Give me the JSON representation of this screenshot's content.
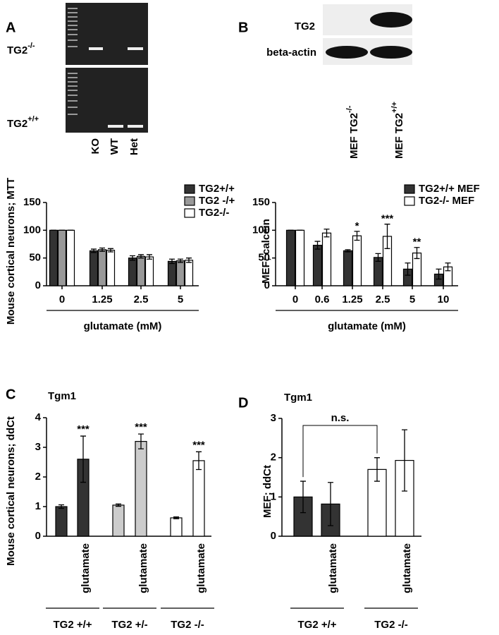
{
  "panel_labels": [
    "A",
    "B",
    "C",
    "D"
  ],
  "gel_a": {
    "rows": [
      {
        "name": "TG2",
        "sup": "-/-"
      },
      {
        "name": "TG2",
        "sup": "+/+"
      }
    ],
    "lanes": [
      "KO",
      "WT",
      "Het"
    ]
  },
  "blot_b": {
    "rows": [
      "TG2",
      "beta-actin"
    ],
    "lanes": [
      {
        "name": "MEF TG2",
        "sup": "-/-"
      },
      {
        "name": "MEF TG2",
        "sup": "+/+"
      }
    ]
  },
  "chart_data": [
    {
      "type": "bar",
      "y_label": "Mouse cortical neurons; MTT",
      "x_label": "glutamate (mM)",
      "categories": [
        "0",
        "1.25",
        "2.5",
        "5"
      ],
      "ylim": [
        0,
        150
      ],
      "yticks": [
        0,
        50,
        100,
        150
      ],
      "legend": "top-right",
      "series": [
        {
          "name": "TG2+/+",
          "color": "#333333",
          "values": [
            100,
            63,
            50,
            44
          ],
          "errors": [
            0,
            3,
            4,
            4
          ]
        },
        {
          "name": "TG2 -/+",
          "color": "#999999",
          "values": [
            100,
            65,
            53,
            45
          ],
          "errors": [
            0,
            3,
            3,
            3
          ]
        },
        {
          "name": "TG2-/-",
          "color": "#ffffff",
          "values": [
            100,
            64,
            52,
            46
          ],
          "errors": [
            0,
            3,
            4,
            4
          ]
        }
      ]
    },
    {
      "type": "bar",
      "y_label": "MEF; calcein",
      "x_label": "glutamate (mM)",
      "categories": [
        "0",
        "0.6",
        "1.25",
        "2.5",
        "5",
        "10"
      ],
      "ylim": [
        0,
        150
      ],
      "yticks": [
        0,
        50,
        100,
        150
      ],
      "legend": "top-right",
      "series": [
        {
          "name": "TG2+/+ MEF",
          "color": "#333333",
          "values": [
            100,
            73,
            63,
            51,
            30,
            21
          ],
          "errors": [
            0,
            7,
            2,
            7,
            11,
            9
          ]
        },
        {
          "name": "TG2-/- MEF",
          "color": "#ffffff",
          "values": [
            100,
            95,
            90,
            89,
            59,
            34
          ],
          "errors": [
            0,
            7,
            8,
            22,
            10,
            7
          ]
        }
      ],
      "annotations": [
        null,
        null,
        "*",
        "***",
        "**",
        null
      ]
    },
    {
      "type": "bar",
      "title": "Tgm1",
      "y_label": "Mouse cortical neurons; ddCt",
      "categories": [
        null,
        "glutamate",
        null,
        "glutamate",
        null,
        "glutamate"
      ],
      "values": [
        1.0,
        2.6,
        1.05,
        3.2,
        0.62,
        2.55
      ],
      "errors": [
        0.06,
        0.78,
        0.04,
        0.25,
        0.03,
        0.3
      ],
      "colors": [
        "#333333",
        "#333333",
        "#cccccc",
        "#cccccc",
        "#ffffff",
        "#ffffff"
      ],
      "annotations": [
        null,
        "***",
        null,
        "***",
        null,
        "***"
      ],
      "groups": [
        "TG2 +/+",
        "TG2 +/-",
        "TG2 -/-"
      ],
      "ylim": [
        0,
        4
      ],
      "yticks": [
        0,
        1,
        2,
        3,
        4
      ]
    },
    {
      "type": "bar",
      "title": "Tgm1",
      "y_label": "MEF; ddCt",
      "categories": [
        null,
        "glutamate",
        null,
        "glutamate"
      ],
      "values": [
        1.0,
        0.82,
        1.7,
        1.93
      ],
      "errors": [
        0.4,
        0.55,
        0.3,
        0.78
      ],
      "colors": [
        "#333333",
        "#333333",
        "#ffffff",
        "#ffffff"
      ],
      "groups": [
        "TG2 +/+",
        "TG2 -/-"
      ],
      "comparison": "n.s.",
      "ylim": [
        0,
        3
      ],
      "yticks": [
        0,
        1,
        2,
        3
      ]
    }
  ]
}
